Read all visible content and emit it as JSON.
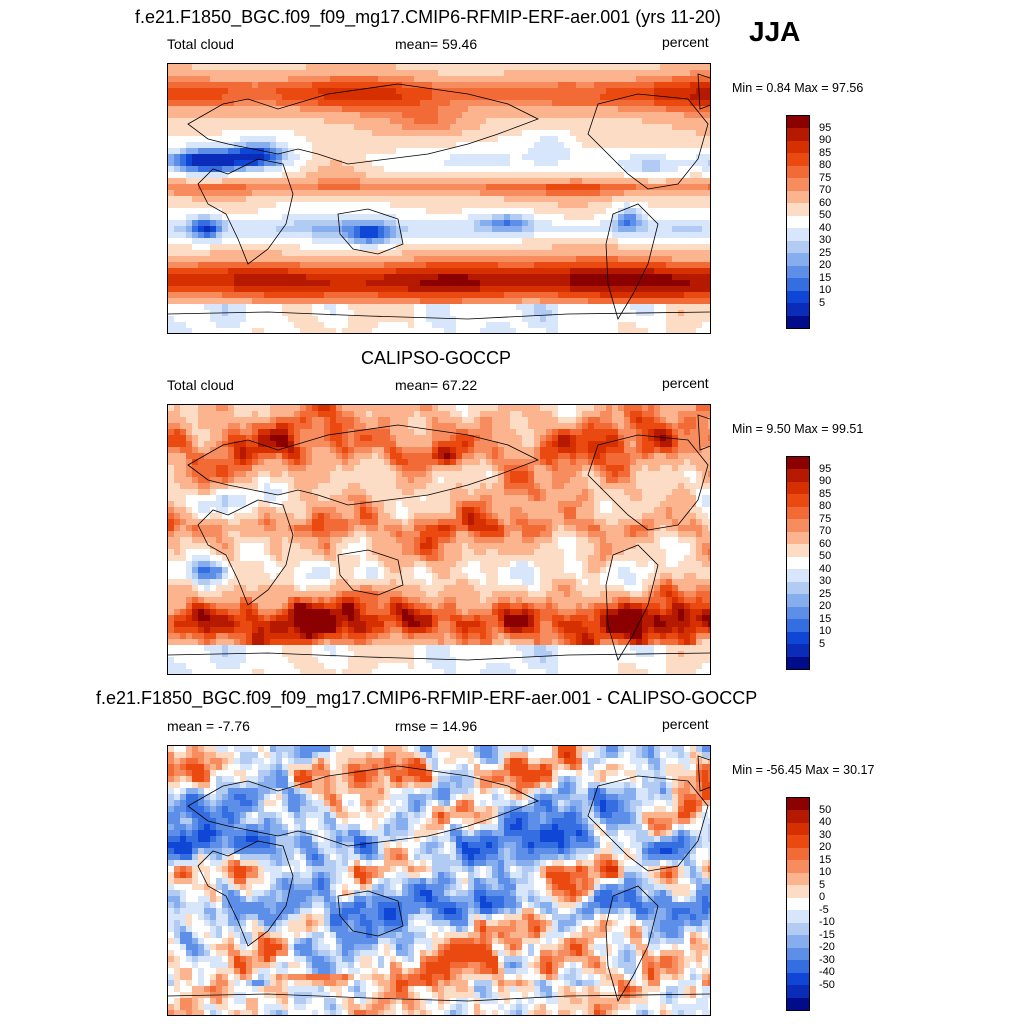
{
  "season": "JJA",
  "panels": [
    {
      "title": "f.e21.F1850_BGC.f09_f09_mg17.CMIP6-RFMIP-ERF-aer.001 (yrs 11-20)",
      "left_label": "Total cloud",
      "center_label": "mean=  59.46",
      "right_label": "percent",
      "minmax": "Min =   0.84 Max =  97.56",
      "colorbar": {
        "labels": [
          "95",
          "90",
          "85",
          "80",
          "75",
          "70",
          "60",
          "50",
          "40",
          "30",
          "25",
          "20",
          "15",
          "10",
          "5"
        ],
        "colors": [
          "#8b0000",
          "#b51a00",
          "#d63000",
          "#ea4a10",
          "#f26a36",
          "#f78c5e",
          "#fbb48e",
          "#fddcc6",
          "#ffffff",
          "#d7e6fa",
          "#b1cbf3",
          "#86aeee",
          "#5e8fe8",
          "#356ee1",
          "#1046d6",
          "#0a2cb8",
          "#000c8a"
        ]
      },
      "field": {
        "type": "model"
      }
    },
    {
      "title": "CALIPSO-GOCCP",
      "left_label": "Total cloud",
      "center_label": "mean=  67.22",
      "right_label": "percent",
      "minmax": "Min =   9.50 Max =  99.51",
      "colorbar": {
        "labels": [
          "95",
          "90",
          "85",
          "80",
          "75",
          "70",
          "60",
          "50",
          "40",
          "30",
          "25",
          "20",
          "15",
          "10",
          "5"
        ],
        "colors": [
          "#8b0000",
          "#b51a00",
          "#d63000",
          "#ea4a10",
          "#f26a36",
          "#f78c5e",
          "#fbb48e",
          "#fddcc6",
          "#ffffff",
          "#d7e6fa",
          "#b1cbf3",
          "#86aeee",
          "#5e8fe8",
          "#356ee1",
          "#1046d6",
          "#0a2cb8",
          "#000c8a"
        ]
      },
      "field": {
        "type": "obs"
      }
    },
    {
      "title": "f.e21.F1850_BGC.f09_f09_mg17.CMIP6-RFMIP-ERF-aer.001 - CALIPSO-GOCCP",
      "left_label": "mean =  -7.76",
      "center_label": "rmse =  14.96",
      "right_label": "percent",
      "minmax": "Min = -56.45 Max =  30.17",
      "colorbar": {
        "labels": [
          "50",
          "40",
          "30",
          "20",
          "15",
          "10",
          "5",
          "0",
          "-5",
          "-10",
          "-15",
          "-20",
          "-30",
          "-40",
          "-50"
        ],
        "colors": [
          "#8b0000",
          "#b51a00",
          "#d63000",
          "#ea4a10",
          "#f26a36",
          "#f78c5e",
          "#fbb48e",
          "#fddcc6",
          "#ffffff",
          "#d7e6fa",
          "#b1cbf3",
          "#86aeee",
          "#5e8fe8",
          "#356ee1",
          "#1046d6",
          "#0a2cb8",
          "#000c8a"
        ]
      },
      "field": {
        "type": "diff"
      }
    }
  ]
}
